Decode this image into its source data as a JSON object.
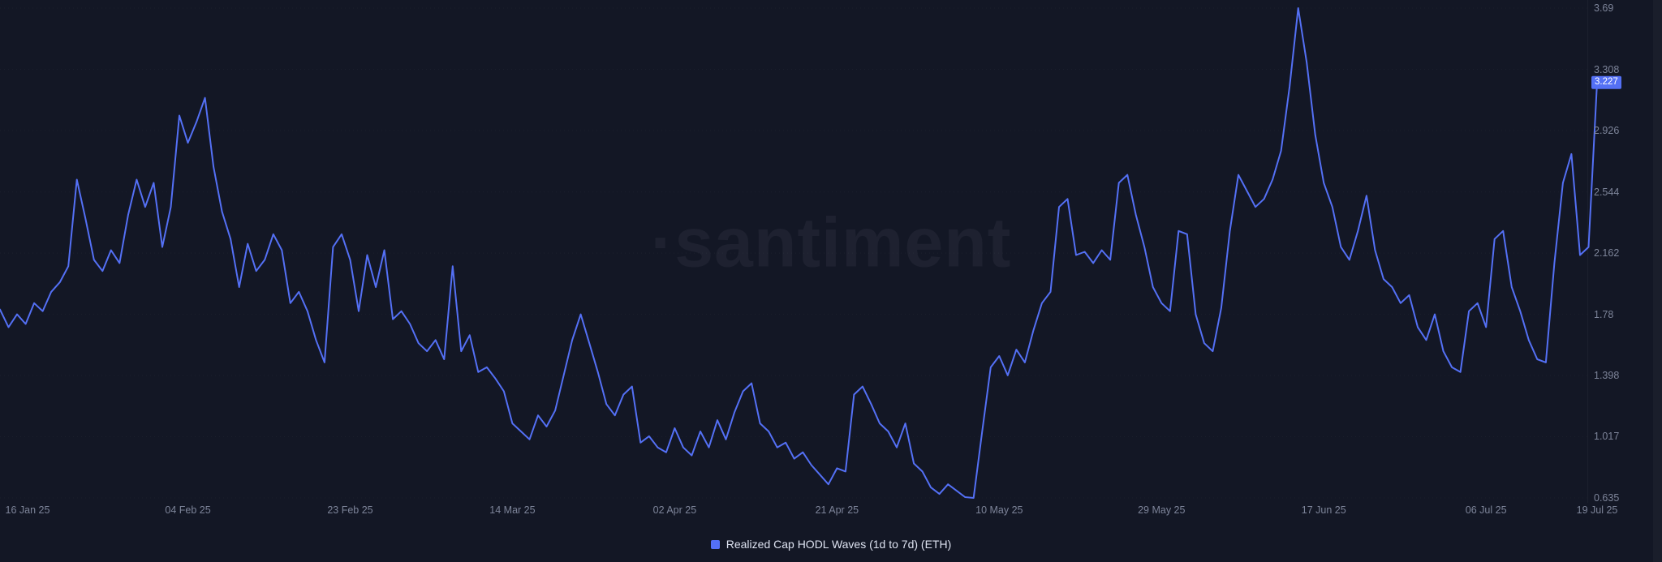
{
  "watermark": "·santiment",
  "legend": {
    "label": "Realized Cap HODL Waves (1d to 7d) (ETH)"
  },
  "colors": {
    "background": "#131725",
    "line": "#5470f5",
    "badge_bg": "#5470f5",
    "badge_text": "#ffffff",
    "axis_text": "#7d8499",
    "legend_text": "#dde2f0",
    "watermark_text": "rgba(226,232,255,0.05)"
  },
  "chart_data": {
    "type": "line",
    "title": "Realized Cap HODL Waves (1d to 7d) (ETH)",
    "series": [
      {
        "name": "Realized Cap HODL Waves (1d to 7d) (ETH)"
      }
    ],
    "legend_position": "bottom-center",
    "grid": "faint-horizontal",
    "y_range": [
      0.635,
      3.69
    ],
    "y_tick_labels": [
      "3.69",
      "3.308",
      "2.926",
      "2.544",
      "2.162",
      "1.78",
      "1.398",
      "1.017",
      "0.635"
    ],
    "x_ticks": [
      {
        "label": "16 Jan 25",
        "index": 3
      },
      {
        "label": "04 Feb 25",
        "index": 22
      },
      {
        "label": "23 Feb 25",
        "index": 41
      },
      {
        "label": "14 Mar 25",
        "index": 60
      },
      {
        "label": "02 Apr 25",
        "index": 79
      },
      {
        "label": "21 Apr 25",
        "index": 98
      },
      {
        "label": "10 May 25",
        "index": 117
      },
      {
        "label": "29 May 25",
        "index": 136
      },
      {
        "label": "17 Jun 25",
        "index": 155
      },
      {
        "label": "06 Jul 25",
        "index": 174
      },
      {
        "label": "19 Jul 25",
        "index": 187
      }
    ],
    "last_value_label": "3.227",
    "values": [
      1.81,
      1.7,
      1.78,
      1.72,
      1.85,
      1.8,
      1.92,
      1.98,
      2.08,
      2.62,
      2.38,
      2.12,
      2.05,
      2.18,
      2.1,
      2.4,
      2.62,
      2.45,
      2.6,
      2.2,
      2.45,
      3.02,
      2.85,
      2.98,
      3.13,
      2.7,
      2.42,
      2.25,
      1.95,
      2.22,
      2.05,
      2.12,
      2.28,
      2.18,
      1.85,
      1.92,
      1.8,
      1.62,
      1.48,
      2.2,
      2.28,
      2.12,
      1.8,
      2.15,
      1.95,
      2.18,
      1.75,
      1.8,
      1.72,
      1.6,
      1.55,
      1.62,
      1.5,
      2.08,
      1.55,
      1.65,
      1.42,
      1.45,
      1.38,
      1.3,
      1.1,
      1.05,
      1.0,
      1.15,
      1.08,
      1.18,
      1.4,
      1.62,
      1.78,
      1.6,
      1.42,
      1.22,
      1.15,
      1.28,
      1.33,
      0.98,
      1.02,
      0.95,
      0.92,
      1.07,
      0.95,
      0.9,
      1.05,
      0.95,
      1.12,
      1.0,
      1.17,
      1.3,
      1.35,
      1.1,
      1.05,
      0.95,
      0.98,
      0.88,
      0.92,
      0.84,
      0.78,
      0.72,
      0.82,
      0.8,
      1.28,
      1.33,
      1.22,
      1.1,
      1.05,
      0.95,
      1.1,
      0.85,
      0.8,
      0.7,
      0.66,
      0.72,
      0.68,
      0.64,
      0.635,
      1.05,
      1.45,
      1.52,
      1.4,
      1.56,
      1.48,
      1.68,
      1.85,
      1.92,
      2.45,
      2.5,
      2.15,
      2.17,
      2.1,
      2.18,
      2.12,
      2.6,
      2.65,
      2.4,
      2.2,
      1.95,
      1.85,
      1.8,
      2.3,
      2.28,
      1.78,
      1.6,
      1.55,
      1.82,
      2.3,
      2.65,
      2.55,
      2.45,
      2.5,
      2.62,
      2.8,
      3.2,
      3.69,
      3.35,
      2.9,
      2.6,
      2.45,
      2.2,
      2.12,
      2.3,
      2.52,
      2.18,
      2.0,
      1.95,
      1.85,
      1.9,
      1.7,
      1.62,
      1.78,
      1.55,
      1.45,
      1.42,
      1.8,
      1.85,
      1.7,
      2.25,
      2.3,
      1.95,
      1.8,
      1.62,
      1.5,
      1.48,
      2.1,
      2.6,
      2.78,
      2.15,
      2.2,
      3.227
    ]
  }
}
